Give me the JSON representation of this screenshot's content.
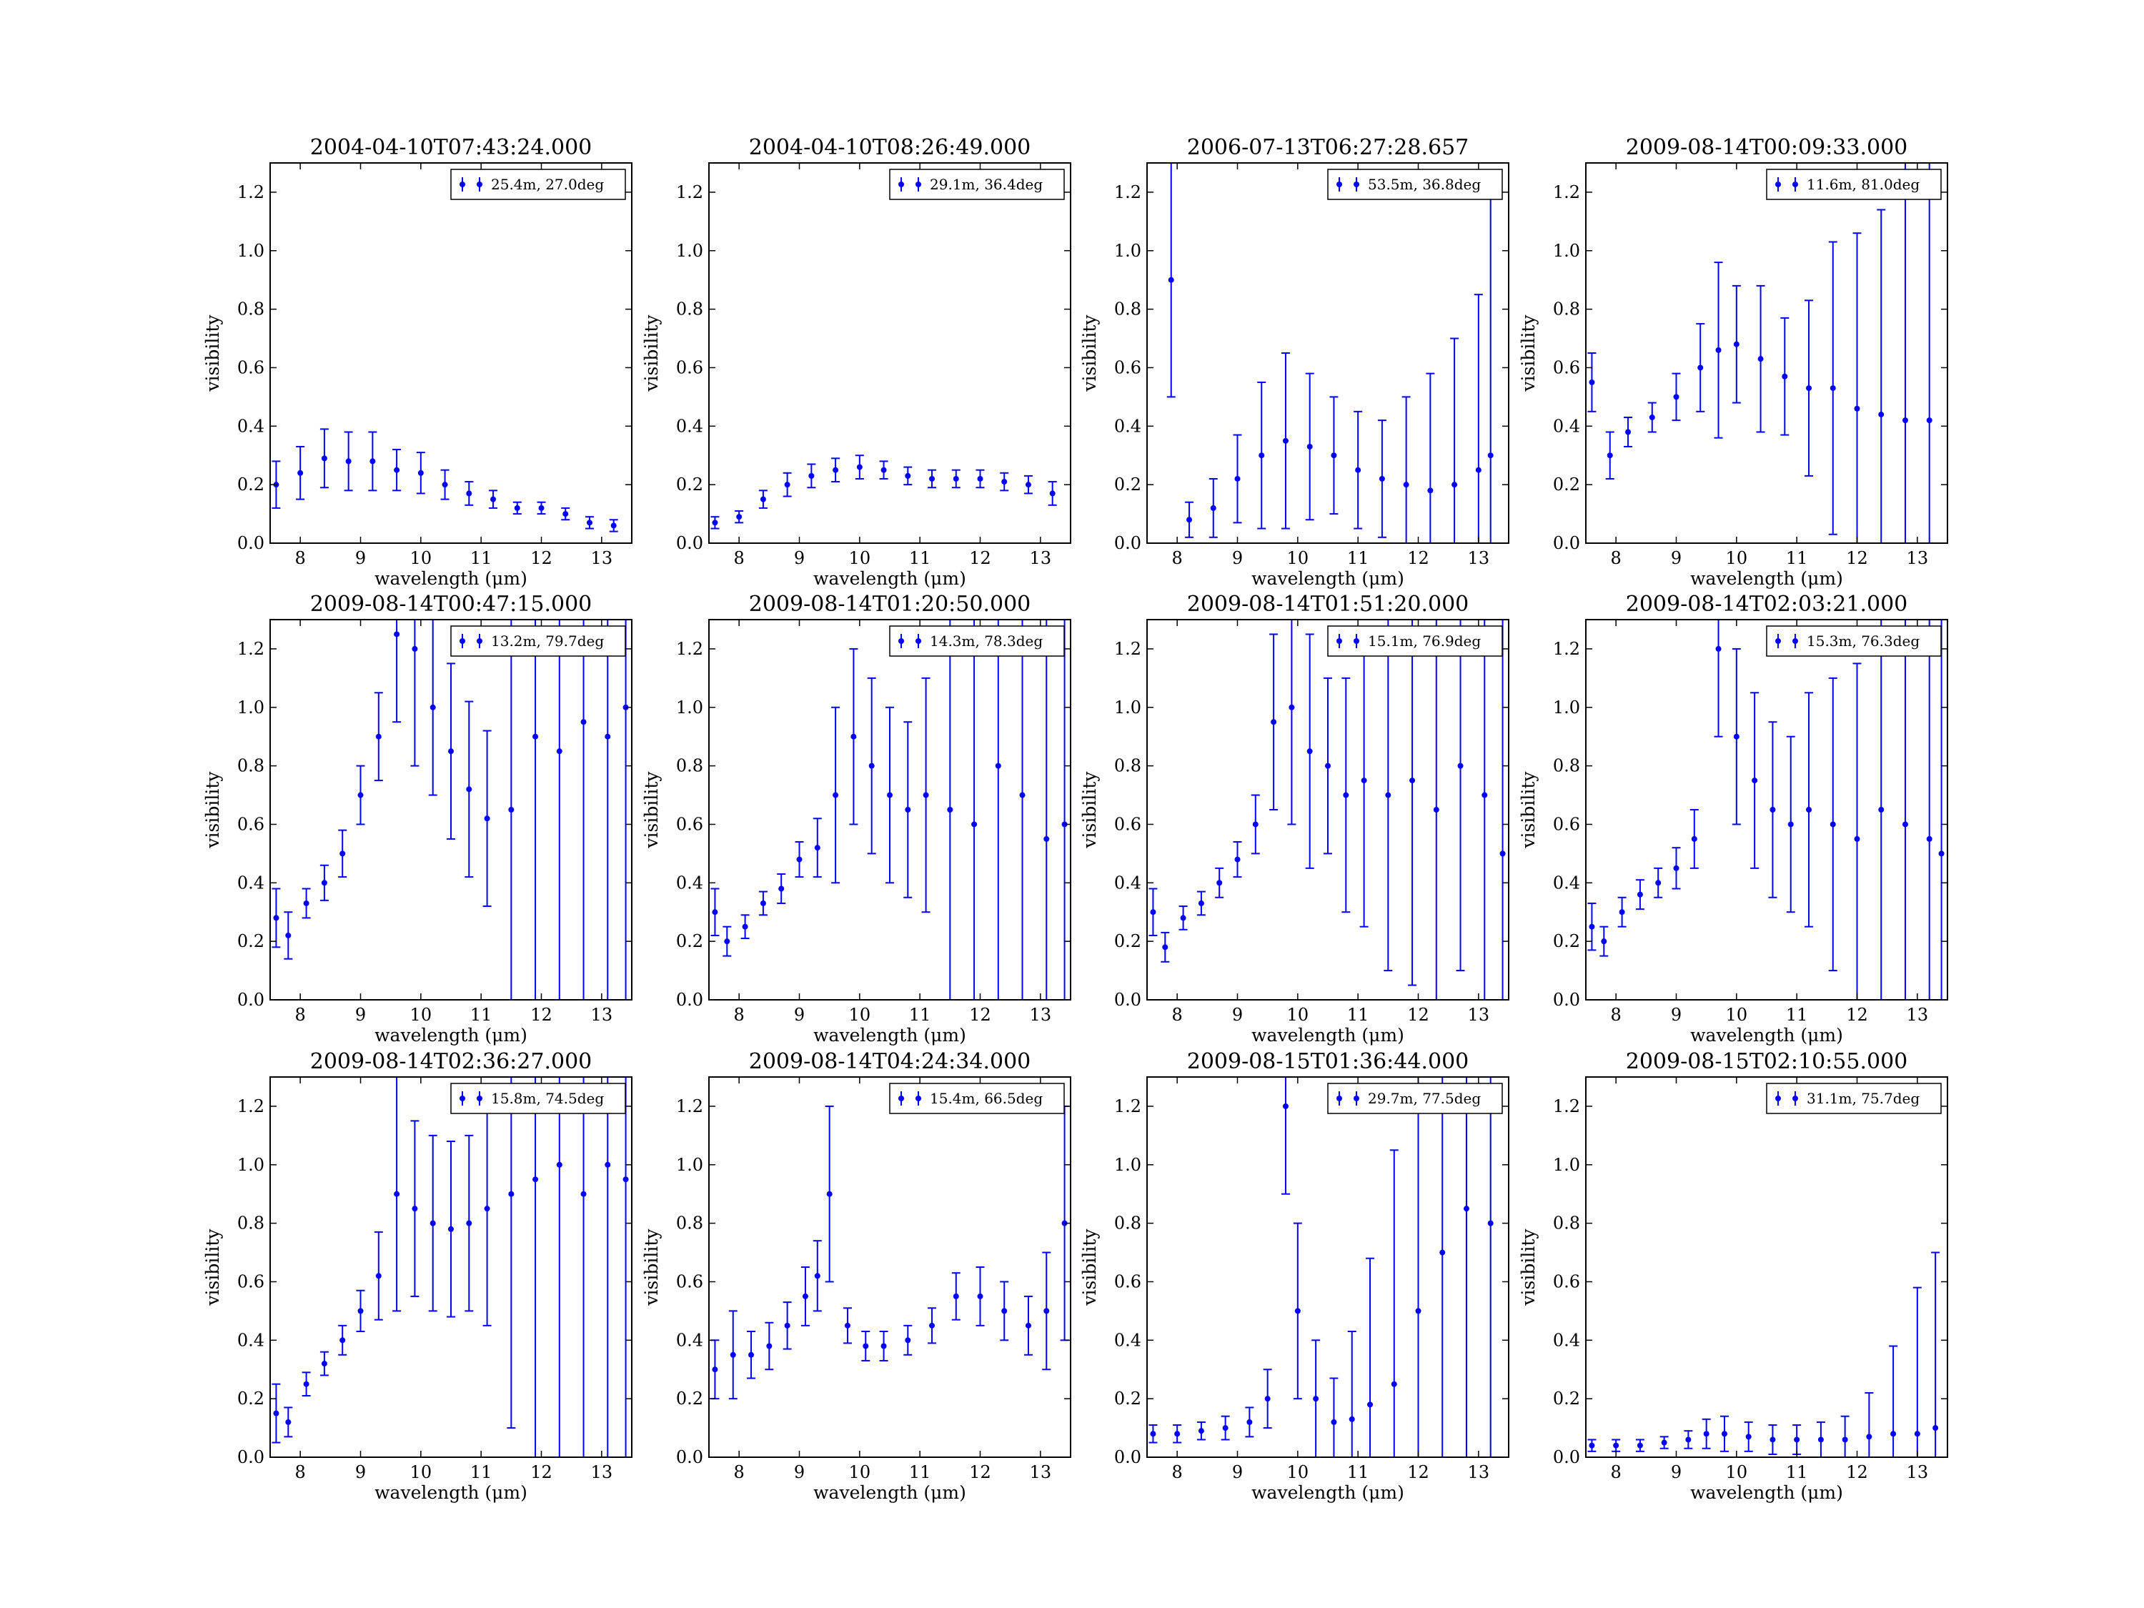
{
  "figure": {
    "series_color": "#0000ff"
  },
  "chart_data": [
    {
      "type": "scatter",
      "title": "2004-04-10T07:43:24.000",
      "xlabel": "wavelength (μm)",
      "ylabel": "visibility",
      "xlim": [
        7.5,
        13.5
      ],
      "ylim": [
        0.0,
        1.3
      ],
      "xticks": [
        "8",
        "9",
        "10",
        "11",
        "12",
        "13"
      ],
      "yticks": [
        "0.0",
        "0.2",
        "0.4",
        "0.6",
        "0.8",
        "1.0",
        "1.2"
      ],
      "grid": false,
      "legend_position": "top-right",
      "series": [
        {
          "name": "25.4m, 27.0deg",
          "x": [
            7.6,
            8.0,
            8.4,
            8.8,
            9.2,
            9.6,
            10.0,
            10.4,
            10.8,
            11.2,
            11.6,
            12.0,
            12.4,
            12.8,
            13.2
          ],
          "y": [
            0.2,
            0.24,
            0.29,
            0.28,
            0.28,
            0.25,
            0.24,
            0.2,
            0.17,
            0.15,
            0.12,
            0.12,
            0.1,
            0.07,
            0.06
          ],
          "yerr": [
            0.08,
            0.09,
            0.1,
            0.1,
            0.1,
            0.07,
            0.07,
            0.05,
            0.04,
            0.03,
            0.02,
            0.02,
            0.02,
            0.02,
            0.02
          ]
        }
      ]
    },
    {
      "type": "scatter",
      "title": "2004-04-10T08:26:49.000",
      "xlabel": "wavelength (μm)",
      "ylabel": "visibility",
      "xlim": [
        7.5,
        13.5
      ],
      "ylim": [
        0.0,
        1.3
      ],
      "xticks": [
        "8",
        "9",
        "10",
        "11",
        "12",
        "13"
      ],
      "yticks": [
        "0.0",
        "0.2",
        "0.4",
        "0.6",
        "0.8",
        "1.0",
        "1.2"
      ],
      "grid": false,
      "legend_position": "top-right",
      "series": [
        {
          "name": "29.1m, 36.4deg",
          "x": [
            7.6,
            8.0,
            8.4,
            8.8,
            9.2,
            9.6,
            10.0,
            10.4,
            10.8,
            11.2,
            11.6,
            12.0,
            12.4,
            12.8,
            13.2
          ],
          "y": [
            0.07,
            0.09,
            0.15,
            0.2,
            0.23,
            0.25,
            0.26,
            0.25,
            0.23,
            0.22,
            0.22,
            0.22,
            0.21,
            0.2,
            0.17
          ],
          "yerr": [
            0.02,
            0.02,
            0.03,
            0.04,
            0.04,
            0.04,
            0.04,
            0.03,
            0.03,
            0.03,
            0.03,
            0.03,
            0.03,
            0.03,
            0.04
          ]
        }
      ]
    },
    {
      "type": "scatter",
      "title": "2006-07-13T06:27:28.657",
      "xlabel": "wavelength (μm)",
      "ylabel": "visibility",
      "xlim": [
        7.5,
        13.5
      ],
      "ylim": [
        0.0,
        1.3
      ],
      "xticks": [
        "8",
        "9",
        "10",
        "11",
        "12",
        "13"
      ],
      "yticks": [
        "0.0",
        "0.2",
        "0.4",
        "0.6",
        "0.8",
        "1.0",
        "1.2"
      ],
      "grid": false,
      "legend_position": "top-right",
      "series": [
        {
          "name": "53.5m, 36.8deg",
          "x": [
            7.9,
            8.2,
            8.6,
            9.0,
            9.4,
            9.8,
            10.2,
            10.6,
            11.0,
            11.4,
            11.8,
            12.2,
            12.6,
            13.0,
            13.2
          ],
          "y": [
            0.9,
            0.08,
            0.12,
            0.22,
            0.3,
            0.35,
            0.33,
            0.3,
            0.25,
            0.22,
            0.2,
            0.18,
            0.2,
            0.25,
            0.3
          ],
          "yerr": [
            0.4,
            0.06,
            0.1,
            0.15,
            0.25,
            0.3,
            0.25,
            0.2,
            0.2,
            0.2,
            0.3,
            0.4,
            0.5,
            0.6,
            0.9
          ]
        }
      ]
    },
    {
      "type": "scatter",
      "title": "2009-08-14T00:09:33.000",
      "xlabel": "wavelength (μm)",
      "ylabel": "visibility",
      "xlim": [
        7.5,
        13.5
      ],
      "ylim": [
        0.0,
        1.3
      ],
      "xticks": [
        "8",
        "9",
        "10",
        "11",
        "12",
        "13"
      ],
      "yticks": [
        "0.0",
        "0.2",
        "0.4",
        "0.6",
        "0.8",
        "1.0",
        "1.2"
      ],
      "grid": false,
      "legend_position": "top-right",
      "series": [
        {
          "name": "11.6m, 81.0deg",
          "x": [
            7.6,
            7.9,
            8.2,
            8.6,
            9.0,
            9.4,
            9.7,
            10.0,
            10.4,
            10.8,
            11.2,
            11.6,
            12.0,
            12.4,
            12.8,
            13.2
          ],
          "y": [
            0.55,
            0.3,
            0.38,
            0.43,
            0.5,
            0.6,
            0.66,
            0.68,
            0.63,
            0.57,
            0.53,
            0.53,
            0.46,
            0.44,
            0.42,
            0.42
          ],
          "yerr": [
            0.1,
            0.08,
            0.05,
            0.05,
            0.08,
            0.15,
            0.3,
            0.2,
            0.25,
            0.2,
            0.3,
            0.5,
            0.6,
            0.7,
            0.9,
            0.9
          ]
        }
      ]
    },
    {
      "type": "scatter",
      "title": "2009-08-14T00:47:15.000",
      "xlabel": "wavelength (μm)",
      "ylabel": "visibility",
      "xlim": [
        7.5,
        13.5
      ],
      "ylim": [
        0.0,
        1.3
      ],
      "xticks": [
        "8",
        "9",
        "10",
        "11",
        "12",
        "13"
      ],
      "yticks": [
        "0.0",
        "0.2",
        "0.4",
        "0.6",
        "0.8",
        "1.0",
        "1.2"
      ],
      "grid": false,
      "legend_position": "top-right",
      "series": [
        {
          "name": "13.2m, 79.7deg",
          "x": [
            7.6,
            7.8,
            8.1,
            8.4,
            8.7,
            9.0,
            9.3,
            9.6,
            9.9,
            10.2,
            10.5,
            10.8,
            11.1,
            11.5,
            11.9,
            12.3,
            12.7,
            13.1,
            13.4
          ],
          "y": [
            0.28,
            0.22,
            0.33,
            0.4,
            0.5,
            0.7,
            0.9,
            1.25,
            1.2,
            1.0,
            0.85,
            0.72,
            0.62,
            0.65,
            0.9,
            0.85,
            0.95,
            0.9,
            1.0
          ],
          "yerr": [
            0.1,
            0.08,
            0.05,
            0.06,
            0.08,
            0.1,
            0.15,
            0.3,
            0.4,
            0.3,
            0.3,
            0.3,
            0.3,
            1.0,
            1.2,
            1.2,
            1.2,
            1.2,
            1.2
          ]
        }
      ]
    },
    {
      "type": "scatter",
      "title": "2009-08-14T01:20:50.000",
      "xlabel": "wavelength (μm)",
      "ylabel": "visibility",
      "xlim": [
        7.5,
        13.5
      ],
      "ylim": [
        0.0,
        1.3
      ],
      "xticks": [
        "8",
        "9",
        "10",
        "11",
        "12",
        "13"
      ],
      "yticks": [
        "0.0",
        "0.2",
        "0.4",
        "0.6",
        "0.8",
        "1.0",
        "1.2"
      ],
      "grid": false,
      "legend_position": "top-right",
      "series": [
        {
          "name": "14.3m, 78.3deg",
          "x": [
            7.6,
            7.8,
            8.1,
            8.4,
            8.7,
            9.0,
            9.3,
            9.6,
            9.9,
            10.2,
            10.5,
            10.8,
            11.1,
            11.5,
            11.9,
            12.3,
            12.7,
            13.1,
            13.4
          ],
          "y": [
            0.3,
            0.2,
            0.25,
            0.33,
            0.38,
            0.48,
            0.52,
            0.7,
            0.9,
            0.8,
            0.7,
            0.65,
            0.7,
            0.65,
            0.6,
            0.8,
            0.7,
            0.55,
            0.6
          ],
          "yerr": [
            0.08,
            0.05,
            0.04,
            0.04,
            0.05,
            0.06,
            0.1,
            0.3,
            0.3,
            0.3,
            0.3,
            0.3,
            0.4,
            0.8,
            0.8,
            0.8,
            0.8,
            0.8,
            0.8
          ]
        }
      ]
    },
    {
      "type": "scatter",
      "title": "2009-08-14T01:51:20.000",
      "xlabel": "wavelength (μm)",
      "ylabel": "visibility",
      "xlim": [
        7.5,
        13.5
      ],
      "ylim": [
        0.0,
        1.3
      ],
      "xticks": [
        "8",
        "9",
        "10",
        "11",
        "12",
        "13"
      ],
      "yticks": [
        "0.0",
        "0.2",
        "0.4",
        "0.6",
        "0.8",
        "1.0",
        "1.2"
      ],
      "grid": false,
      "legend_position": "top-right",
      "series": [
        {
          "name": "15.1m, 76.9deg",
          "x": [
            7.6,
            7.8,
            8.1,
            8.4,
            8.7,
            9.0,
            9.3,
            9.6,
            9.9,
            10.2,
            10.5,
            10.8,
            11.1,
            11.5,
            11.9,
            12.3,
            12.7,
            13.1,
            13.4
          ],
          "y": [
            0.3,
            0.18,
            0.28,
            0.33,
            0.4,
            0.48,
            0.6,
            0.95,
            1.0,
            0.85,
            0.8,
            0.7,
            0.75,
            0.7,
            0.75,
            0.65,
            0.8,
            0.7,
            0.5
          ],
          "yerr": [
            0.08,
            0.05,
            0.04,
            0.04,
            0.05,
            0.06,
            0.1,
            0.3,
            0.4,
            0.4,
            0.3,
            0.4,
            0.5,
            0.6,
            0.7,
            0.7,
            0.7,
            0.8,
            0.8
          ]
        }
      ]
    },
    {
      "type": "scatter",
      "title": "2009-08-14T02:03:21.000",
      "xlabel": "wavelength (μm)",
      "ylabel": "visibility",
      "xlim": [
        7.5,
        13.5
      ],
      "ylim": [
        0.0,
        1.3
      ],
      "xticks": [
        "8",
        "9",
        "10",
        "11",
        "12",
        "13"
      ],
      "yticks": [
        "0.0",
        "0.2",
        "0.4",
        "0.6",
        "0.8",
        "1.0",
        "1.2"
      ],
      "grid": false,
      "legend_position": "top-right",
      "series": [
        {
          "name": "15.3m, 76.3deg",
          "x": [
            7.6,
            7.8,
            8.1,
            8.4,
            8.7,
            9.0,
            9.3,
            9.7,
            10.0,
            10.3,
            10.6,
            10.9,
            11.2,
            11.6,
            12.0,
            12.4,
            12.8,
            13.2,
            13.4
          ],
          "y": [
            0.25,
            0.2,
            0.3,
            0.36,
            0.4,
            0.45,
            0.55,
            1.2,
            0.9,
            0.75,
            0.65,
            0.6,
            0.65,
            0.6,
            0.55,
            0.65,
            0.6,
            0.55,
            0.5
          ],
          "yerr": [
            0.08,
            0.05,
            0.05,
            0.05,
            0.05,
            0.07,
            0.1,
            0.3,
            0.3,
            0.3,
            0.3,
            0.3,
            0.4,
            0.5,
            0.6,
            0.7,
            0.7,
            0.8,
            0.8
          ]
        }
      ]
    },
    {
      "type": "scatter",
      "title": "2009-08-14T02:36:27.000",
      "xlabel": "wavelength (μm)",
      "ylabel": "visibility",
      "xlim": [
        7.5,
        13.5
      ],
      "ylim": [
        0.0,
        1.3
      ],
      "xticks": [
        "8",
        "9",
        "10",
        "11",
        "12",
        "13"
      ],
      "yticks": [
        "0.0",
        "0.2",
        "0.4",
        "0.6",
        "0.8",
        "1.0",
        "1.2"
      ],
      "grid": false,
      "legend_position": "top-right",
      "series": [
        {
          "name": "15.8m, 74.5deg",
          "x": [
            7.6,
            7.8,
            8.1,
            8.4,
            8.7,
            9.0,
            9.3,
            9.6,
            9.9,
            10.2,
            10.5,
            10.8,
            11.1,
            11.5,
            11.9,
            12.3,
            12.7,
            13.1,
            13.4
          ],
          "y": [
            0.15,
            0.12,
            0.25,
            0.32,
            0.4,
            0.5,
            0.62,
            0.9,
            0.85,
            0.8,
            0.78,
            0.8,
            0.85,
            0.9,
            0.95,
            1.0,
            0.9,
            1.0,
            0.95
          ],
          "yerr": [
            0.1,
            0.05,
            0.04,
            0.04,
            0.05,
            0.07,
            0.15,
            0.4,
            0.3,
            0.3,
            0.3,
            0.3,
            0.4,
            0.8,
            1.0,
            1.0,
            1.0,
            1.0,
            1.0
          ]
        }
      ]
    },
    {
      "type": "scatter",
      "title": "2009-08-14T04:24:34.000",
      "xlabel": "wavelength (μm)",
      "ylabel": "visibility",
      "xlim": [
        7.5,
        13.5
      ],
      "ylim": [
        0.0,
        1.3
      ],
      "xticks": [
        "8",
        "9",
        "10",
        "11",
        "12",
        "13"
      ],
      "yticks": [
        "0.0",
        "0.2",
        "0.4",
        "0.6",
        "0.8",
        "1.0",
        "1.2"
      ],
      "grid": false,
      "legend_position": "top-right",
      "series": [
        {
          "name": "15.4m, 66.5deg",
          "x": [
            7.6,
            7.9,
            8.2,
            8.5,
            8.8,
            9.1,
            9.3,
            9.5,
            9.8,
            10.1,
            10.4,
            10.8,
            11.2,
            11.6,
            12.0,
            12.4,
            12.8,
            13.1,
            13.4
          ],
          "y": [
            0.3,
            0.35,
            0.35,
            0.38,
            0.45,
            0.55,
            0.62,
            0.9,
            0.45,
            0.38,
            0.38,
            0.4,
            0.45,
            0.55,
            0.55,
            0.5,
            0.45,
            0.5,
            0.8
          ],
          "yerr": [
            0.1,
            0.15,
            0.08,
            0.08,
            0.08,
            0.1,
            0.12,
            0.3,
            0.06,
            0.05,
            0.05,
            0.05,
            0.06,
            0.08,
            0.1,
            0.1,
            0.1,
            0.2,
            0.4
          ]
        }
      ]
    },
    {
      "type": "scatter",
      "title": "2009-08-15T01:36:44.000",
      "xlabel": "wavelength (μm)",
      "ylabel": "visibility",
      "xlim": [
        7.5,
        13.5
      ],
      "ylim": [
        0.0,
        1.3
      ],
      "xticks": [
        "8",
        "9",
        "10",
        "11",
        "12",
        "13"
      ],
      "yticks": [
        "0.0",
        "0.2",
        "0.4",
        "0.6",
        "0.8",
        "1.0",
        "1.2"
      ],
      "grid": false,
      "legend_position": "top-right",
      "series": [
        {
          "name": "29.7m, 77.5deg",
          "x": [
            7.6,
            8.0,
            8.4,
            8.8,
            9.2,
            9.5,
            9.8,
            10.0,
            10.3,
            10.6,
            10.9,
            11.2,
            11.6,
            12.0,
            12.4,
            12.8,
            13.2
          ],
          "y": [
            0.08,
            0.08,
            0.09,
            0.1,
            0.12,
            0.2,
            1.2,
            0.5,
            0.2,
            0.12,
            0.13,
            0.18,
            0.25,
            0.5,
            0.7,
            0.85,
            0.8
          ],
          "yerr": [
            0.03,
            0.03,
            0.03,
            0.04,
            0.05,
            0.1,
            0.3,
            0.3,
            0.2,
            0.15,
            0.3,
            0.5,
            0.8,
            1.0,
            1.2,
            1.2,
            1.2
          ]
        }
      ]
    },
    {
      "type": "scatter",
      "title": "2009-08-15T02:10:55.000",
      "xlabel": "wavelength (μm)",
      "ylabel": "visibility",
      "xlim": [
        7.5,
        13.5
      ],
      "ylim": [
        0.0,
        1.3
      ],
      "xticks": [
        "8",
        "9",
        "10",
        "11",
        "12",
        "13"
      ],
      "yticks": [
        "0.0",
        "0.2",
        "0.4",
        "0.6",
        "0.8",
        "1.0",
        "1.2"
      ],
      "grid": false,
      "legend_position": "top-right",
      "series": [
        {
          "name": "31.1m, 75.7deg",
          "x": [
            7.6,
            8.0,
            8.4,
            8.8,
            9.2,
            9.5,
            9.8,
            10.2,
            10.6,
            11.0,
            11.4,
            11.8,
            12.2,
            12.6,
            13.0,
            13.3
          ],
          "y": [
            0.04,
            0.04,
            0.04,
            0.05,
            0.06,
            0.08,
            0.08,
            0.07,
            0.06,
            0.06,
            0.06,
            0.06,
            0.07,
            0.08,
            0.08,
            0.1
          ],
          "yerr": [
            0.02,
            0.02,
            0.02,
            0.02,
            0.03,
            0.05,
            0.06,
            0.05,
            0.05,
            0.05,
            0.06,
            0.08,
            0.15,
            0.3,
            0.5,
            0.6
          ]
        }
      ]
    }
  ]
}
